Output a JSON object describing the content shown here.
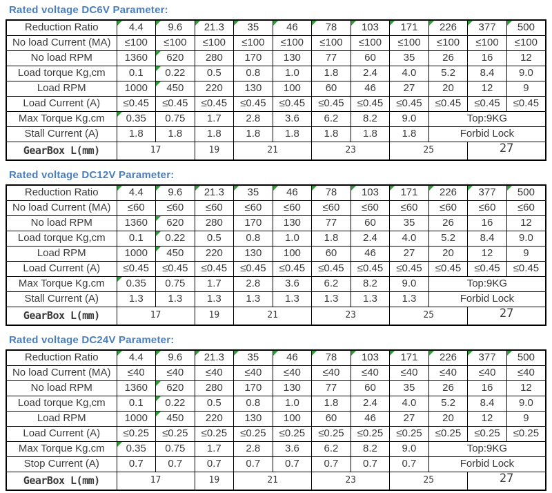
{
  "colors": {
    "title_blue": "#4a7ebc",
    "flag_green": "#2f9d33",
    "border": "#000000",
    "text": "#3a3a3a"
  },
  "tables": [
    {
      "id": "dc6v",
      "title": "Rated voltage DC6V Parameter:",
      "rows": [
        {
          "label": "Reduction Ratio",
          "values": [
            "4.4",
            "9.6",
            "21.3",
            "35",
            "46",
            "78",
            "103",
            "171",
            "226",
            "377",
            "500"
          ],
          "flags": [
            0,
            1,
            2,
            3,
            4,
            5,
            6,
            7,
            8,
            9,
            10
          ]
        },
        {
          "label": "No load Current (MA)",
          "values": [
            "≤100",
            "≤100",
            "≤100",
            "≤100",
            "≤100",
            "≤100",
            "≤100",
            "≤100",
            "≤100",
            "≤100",
            "≤100"
          ]
        },
        {
          "label": "No load RPM",
          "values": [
            "1360",
            "620",
            "280",
            "170",
            "130",
            "77",
            "60",
            "35",
            "26",
            "16",
            "12"
          ],
          "flags": [
            1
          ]
        },
        {
          "label": "Load torque Kg,cm",
          "values": [
            "0.1",
            "0.22",
            "0.5",
            "0.8",
            "1.0",
            "1.8",
            "2.4",
            "4.0",
            "5.2",
            "8.4",
            "9.0"
          ],
          "flags": [
            1
          ]
        },
        {
          "label": "Load RPM",
          "values": [
            "1000",
            "450",
            "220",
            "130",
            "100",
            "60",
            "46",
            "27",
            "20",
            "12",
            "9"
          ],
          "flags": [
            1
          ]
        },
        {
          "label": "Load Current  (A)",
          "values": [
            "≤0.45",
            "≤0.45",
            "≤0.45",
            "≤0.45",
            "≤0.45",
            "≤0.45",
            "≤0.45",
            "≤0.45",
            "≤0.45",
            "≤0.45",
            "≤0.45"
          ]
        },
        {
          "label": "Max Torque Kg.cm",
          "values": [
            "0.35",
            "0.75",
            "1.7",
            "2.8",
            "3.6",
            "6.2",
            "8.2",
            "9.0"
          ],
          "flags": [
            0
          ],
          "tail": {
            "text": "Top:9KG",
            "span": 3
          }
        },
        {
          "label": "Stall Current (A)",
          "values": [
            "1.8",
            "1.8",
            "1.8",
            "1.8",
            "1.8",
            "1.8",
            "1.8",
            "1.8"
          ],
          "tail": {
            "text": "Forbid Lock",
            "span": 3
          }
        }
      ],
      "gearbox": {
        "label": "GearBox L(mm)",
        "cells": [
          {
            "text": "17",
            "span": 2
          },
          {
            "text": "19",
            "span": 1
          },
          {
            "text": "21",
            "span": 2
          },
          {
            "text": "23",
            "span": 2
          },
          {
            "text": "25",
            "span": 2
          },
          {
            "text": "27",
            "span": 2,
            "big": true
          }
        ]
      }
    },
    {
      "id": "dc12v",
      "title": "Rated voltage DC12V Parameter:",
      "rows": [
        {
          "label": "Reduction Ratio",
          "values": [
            "4.4",
            "9.6",
            "21.3",
            "35",
            "46",
            "78",
            "103",
            "171",
            "226",
            "377",
            "500"
          ],
          "flags": [
            0,
            1,
            2,
            3,
            4,
            5,
            6,
            7,
            8,
            9,
            10
          ]
        },
        {
          "label": "No load Current (MA)",
          "values": [
            "≤60",
            "≤60",
            "≤60",
            "≤60",
            "≤60",
            "≤60",
            "≤60",
            "≤60",
            "≤60",
            "≤60",
            "≤60"
          ]
        },
        {
          "label": "No load RPM",
          "values": [
            "1360",
            "620",
            "280",
            "170",
            "130",
            "77",
            "60",
            "35",
            "26",
            "16",
            "12"
          ],
          "flags": [
            1
          ]
        },
        {
          "label": "Load torque Kg,cm",
          "values": [
            "0.1",
            "0.22",
            "0.5",
            "0.8",
            "1.0",
            "1.8",
            "2.4",
            "4.0",
            "5.2",
            "8.4",
            "9.0"
          ],
          "flags": [
            1
          ]
        },
        {
          "label": "Load RPM",
          "values": [
            "1000",
            "450",
            "220",
            "130",
            "100",
            "60",
            "46",
            "27",
            "20",
            "12",
            "9"
          ],
          "flags": [
            1
          ]
        },
        {
          "label": "Load Current  (A)",
          "values": [
            "≤0.45",
            "≤0.45",
            "≤0.45",
            "≤0.45",
            "≤0.45",
            "≤0.45",
            "≤0.45",
            "≤0.45",
            "≤0.45",
            "≤0.45",
            "≤0.45"
          ]
        },
        {
          "label": "Max Torque Kg.cm",
          "values": [
            "0.35",
            "0.75",
            "1.7",
            "2.8",
            "3.6",
            "6.2",
            "8.2",
            "9.0"
          ],
          "flags": [
            0
          ],
          "tail": {
            "text": "Top:9KG",
            "span": 3
          }
        },
        {
          "label": "Stall Current (A)",
          "values": [
            "1.3",
            "1.3",
            "1.3",
            "1.3",
            "1.3",
            "1.3",
            "1.3",
            "1.3"
          ],
          "tail": {
            "text": "Forbid Lock",
            "span": 3
          }
        }
      ],
      "gearbox": {
        "label": "GearBox L(mm)",
        "cells": [
          {
            "text": "17",
            "span": 2
          },
          {
            "text": "19",
            "span": 1
          },
          {
            "text": "21",
            "span": 2
          },
          {
            "text": "23",
            "span": 2
          },
          {
            "text": "25",
            "span": 2
          },
          {
            "text": "27",
            "span": 2,
            "big": true
          }
        ]
      }
    },
    {
      "id": "dc24v",
      "title": "Rated voltage DC24V Parameter:",
      "rows": [
        {
          "label": "Reduction Ratio",
          "values": [
            "4.4",
            "9.6",
            "21.3",
            "35",
            "46",
            "78",
            "103",
            "171",
            "226",
            "377",
            "500"
          ],
          "flags": [
            0,
            1,
            2,
            3,
            4,
            5,
            6,
            7,
            8,
            9,
            10
          ]
        },
        {
          "label": "No load Current (MA)",
          "values": [
            "≤40",
            "≤40",
            "≤40",
            "≤40",
            "≤40",
            "≤40",
            "≤40",
            "≤40",
            "≤40",
            "≤40",
            "≤40"
          ]
        },
        {
          "label": "No load RPM",
          "values": [
            "1360",
            "620",
            "280",
            "170",
            "130",
            "77",
            "60",
            "35",
            "26",
            "16",
            "12"
          ],
          "flags": [
            1
          ]
        },
        {
          "label": "Load torque Kg,cm",
          "values": [
            "0.1",
            "0.22",
            "0.5",
            "0.8",
            "1.0",
            "1.8",
            "2.4",
            "4.0",
            "5.2",
            "8.4",
            "9.0"
          ],
          "flags": [
            1
          ]
        },
        {
          "label": "Load RPM",
          "values": [
            "1000",
            "450",
            "220",
            "130",
            "100",
            "60",
            "46",
            "27",
            "20",
            "12",
            "9"
          ],
          "flags": [
            1
          ]
        },
        {
          "label": "Load Current  (A)",
          "values": [
            "≤0.25",
            "≤0.25",
            "≤0.25",
            "≤0.25",
            "≤0.25",
            "≤0.25",
            "≤0.25",
            "≤0.25",
            "≤0.25",
            "≤0.25",
            "≤0.25"
          ]
        },
        {
          "label": "Max Torque Kg.cm",
          "values": [
            "0.35",
            "0.75",
            "1.7",
            "2.8",
            "3.6",
            "6.2",
            "8.2",
            "9.0"
          ],
          "flags": [
            0
          ],
          "tail": {
            "text": "Top:9KG",
            "span": 3
          }
        },
        {
          "label": "Stop Current (A)",
          "values": [
            "0.7",
            "0.7",
            "0.7",
            "0.7",
            "0.7",
            "0.7",
            "0.7",
            "0.7"
          ],
          "tail": {
            "text": "Forbid Lock",
            "span": 3
          }
        }
      ],
      "gearbox": {
        "label": "GearBox L(mm)",
        "cells": [
          {
            "text": "17",
            "span": 2
          },
          {
            "text": "19",
            "span": 1
          },
          {
            "text": "21",
            "span": 2
          },
          {
            "text": "23",
            "span": 2
          },
          {
            "text": "25",
            "span": 2
          },
          {
            "text": "27",
            "span": 2,
            "big": true
          }
        ]
      }
    }
  ]
}
